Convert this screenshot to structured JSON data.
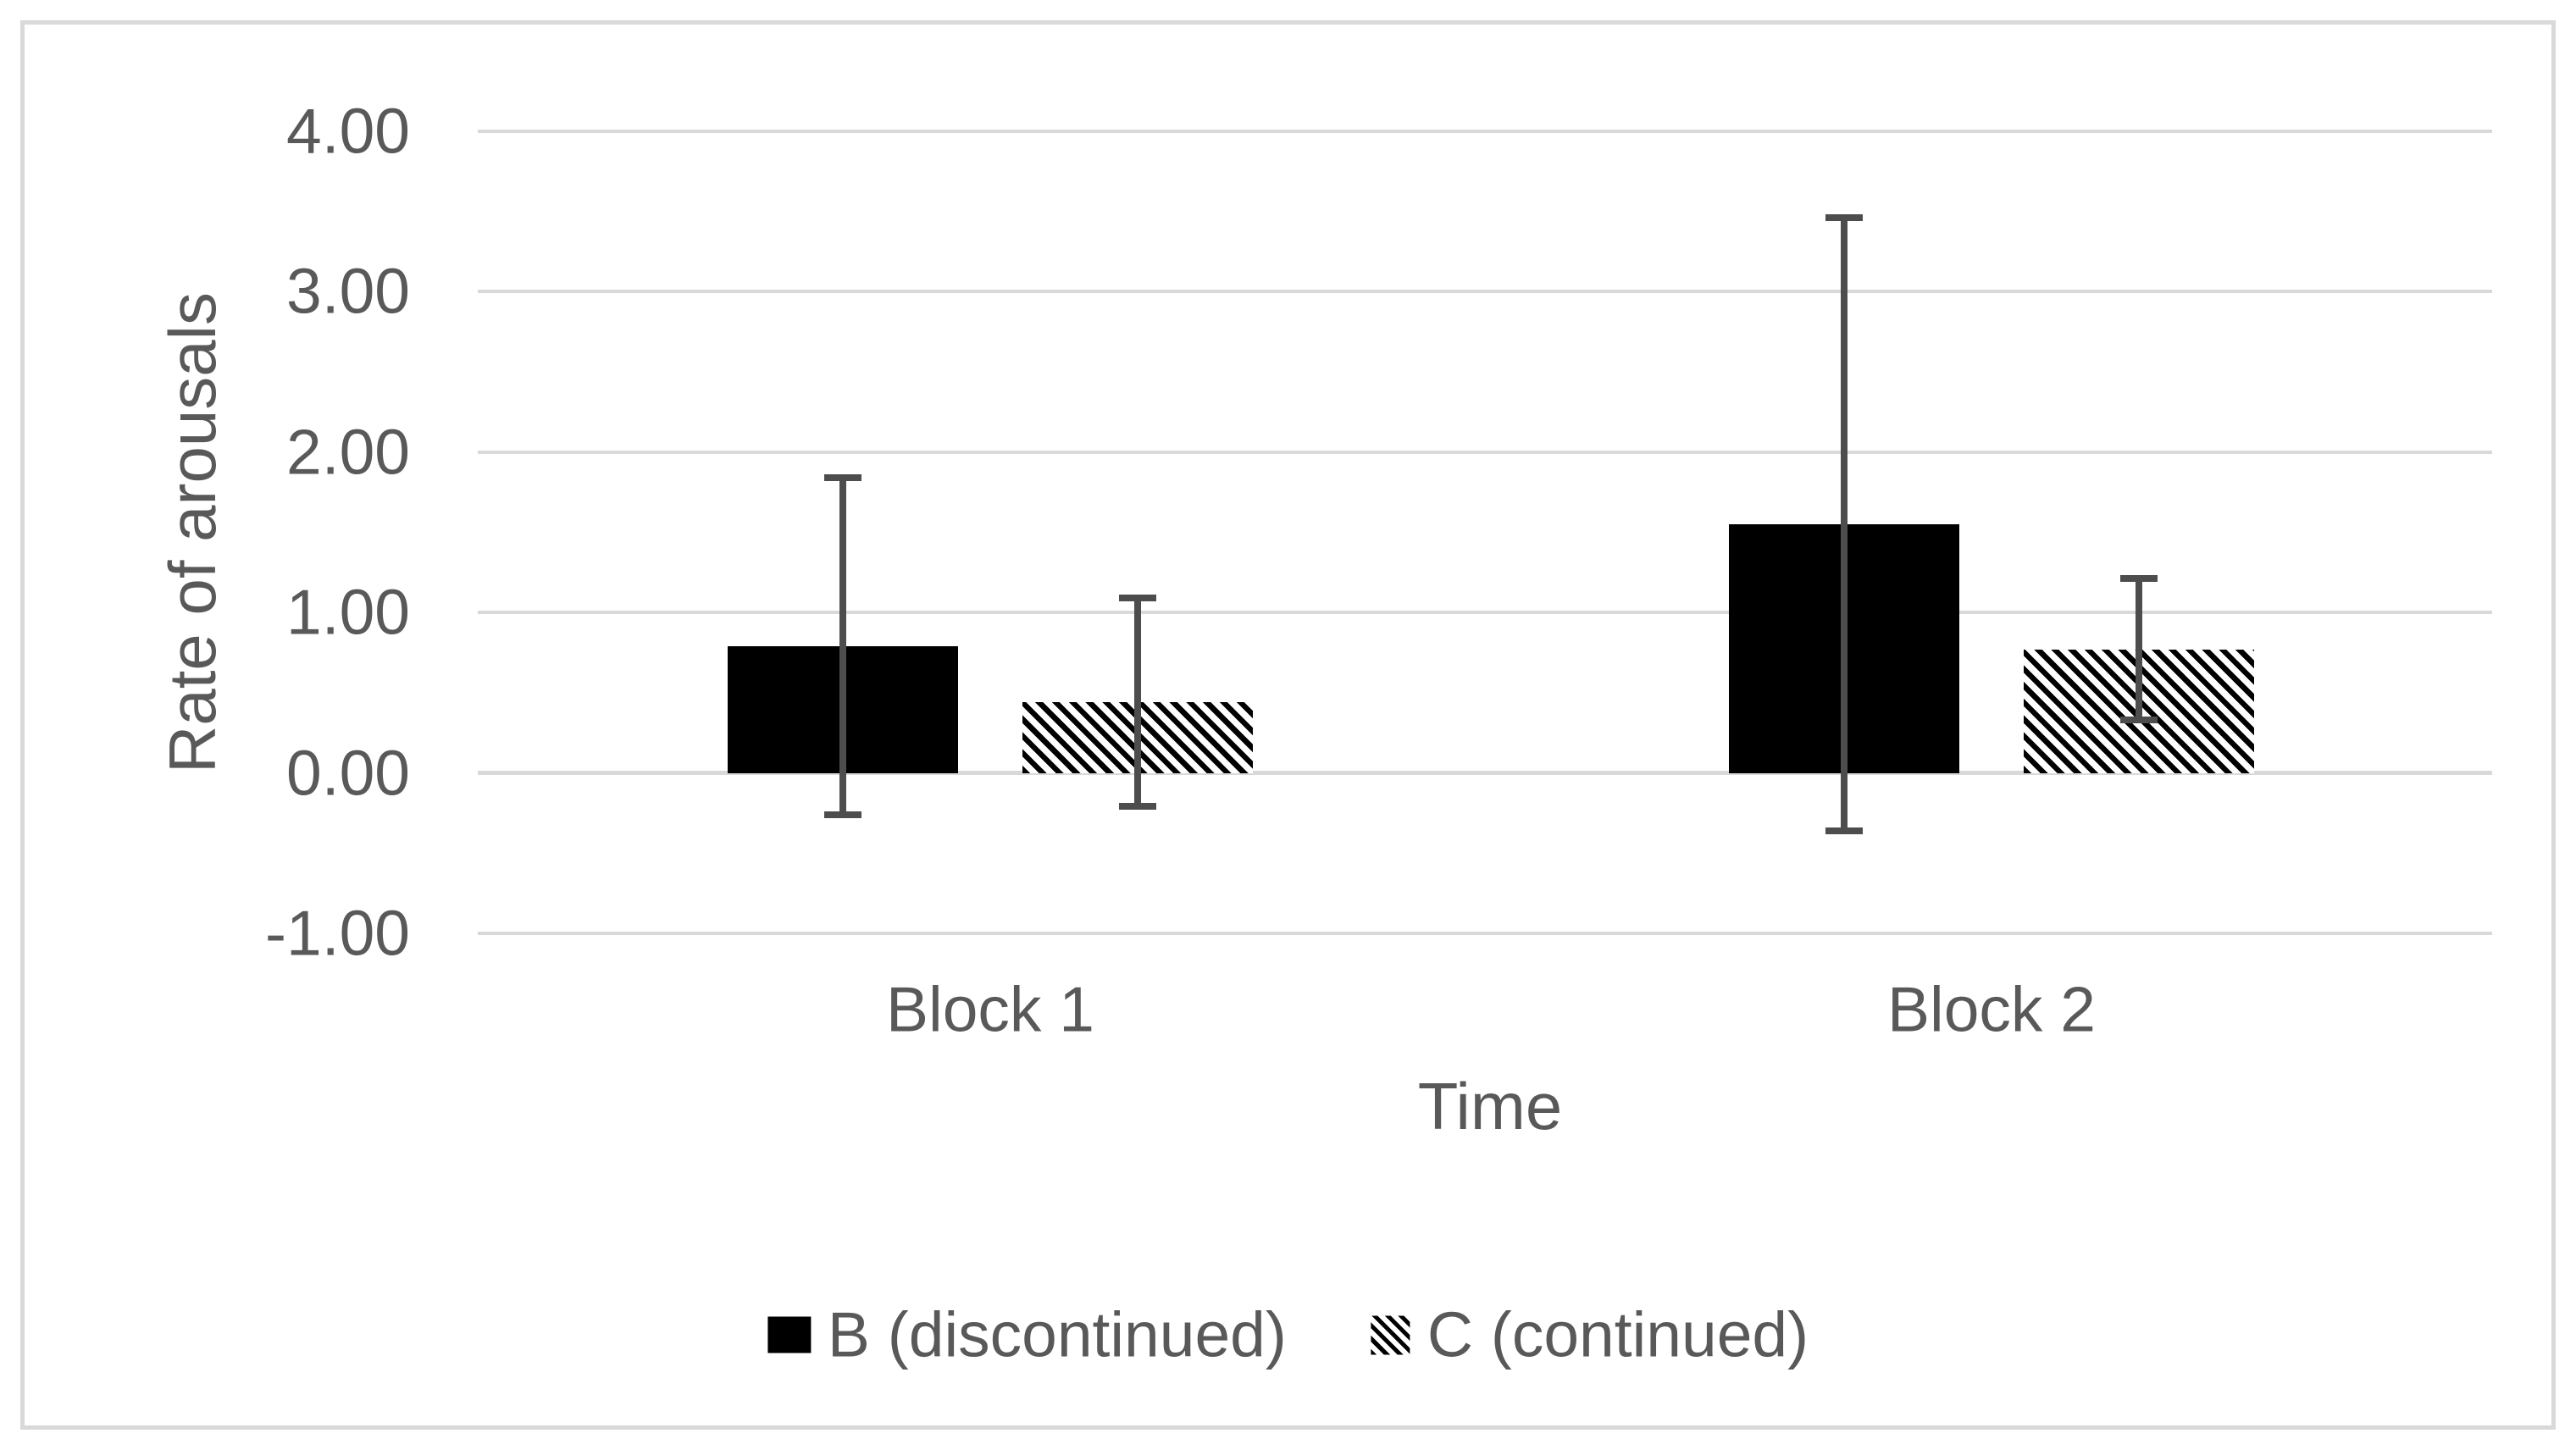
{
  "chart_data": {
    "type": "bar",
    "title": "",
    "xlabel": "Time",
    "ylabel": "Rate of arousals",
    "categories": [
      "Block 1",
      "Block 2"
    ],
    "series": [
      {
        "name": "B (discontinued)",
        "fill": "solid-black",
        "values": [
          0.79,
          1.55
        ],
        "error_upper": [
          1.84,
          3.46
        ],
        "error_lower": [
          -0.26,
          -0.36
        ]
      },
      {
        "name": "C (continued)",
        "fill": "diagonal-hatch",
        "values": [
          0.44,
          0.77
        ],
        "error_upper": [
          1.09,
          1.21
        ],
        "error_lower": [
          -0.21,
          0.33
        ]
      }
    ],
    "y_ticks": [
      "4.00",
      "3.00",
      "2.00",
      "1.00",
      "0.00",
      "-1.00"
    ],
    "y_tick_values": [
      4,
      3,
      2,
      1,
      0,
      -1
    ],
    "ylim": [
      -1,
      4
    ],
    "grid": true,
    "legend_position": "bottom",
    "colors": {
      "bar_solid": "#000000",
      "error_bar": "#4d4d4d",
      "gridline": "#d9d9d9",
      "text": "#595959",
      "frame_border": "#d9d9d9",
      "background": "#ffffff"
    }
  }
}
